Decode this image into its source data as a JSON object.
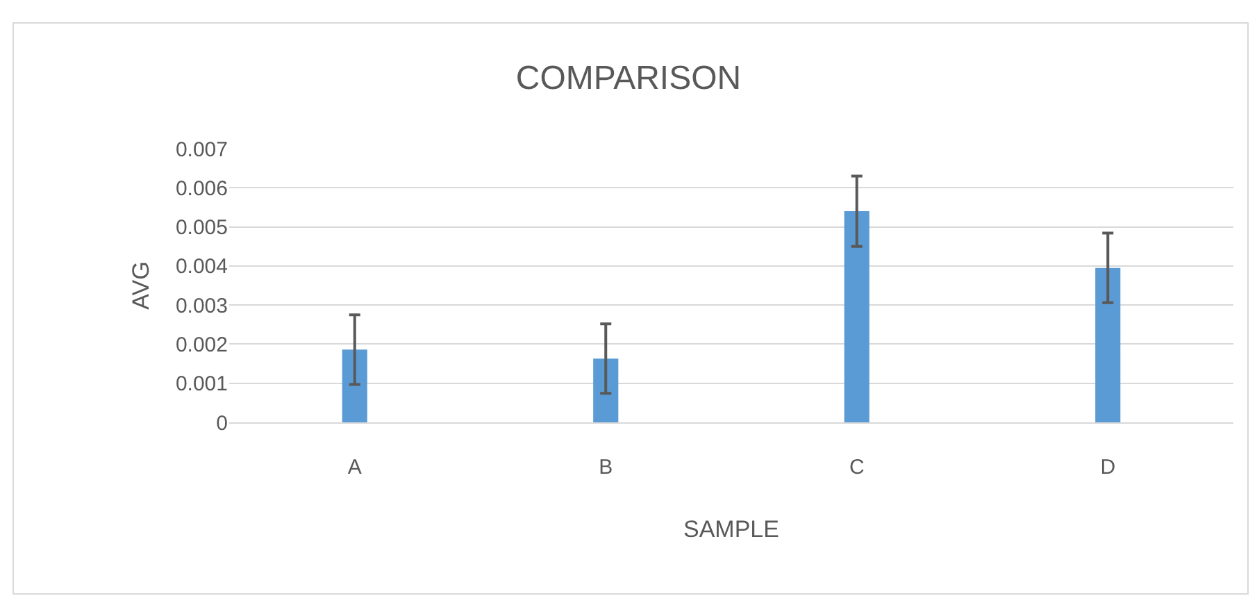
{
  "chart_data": {
    "type": "bar",
    "title": "COMPARISON",
    "xlabel": "SAMPLE",
    "ylabel": "AVG",
    "categories": [
      "A",
      "B",
      "C",
      "D"
    ],
    "values": [
      0.00186,
      0.00163,
      0.0054,
      0.00395
    ],
    "errors": [
      0.00089,
      0.00089,
      0.0009,
      0.00089
    ],
    "color": "#5b9bd5",
    "ylim": [
      0,
      0.007
    ],
    "yticks": [
      {
        "value": 0,
        "label": "0"
      },
      0.001,
      0.002,
      0.003,
      0.004,
      0.005,
      0.006,
      0.007
    ],
    "grid": "y",
    "legend": false
  }
}
